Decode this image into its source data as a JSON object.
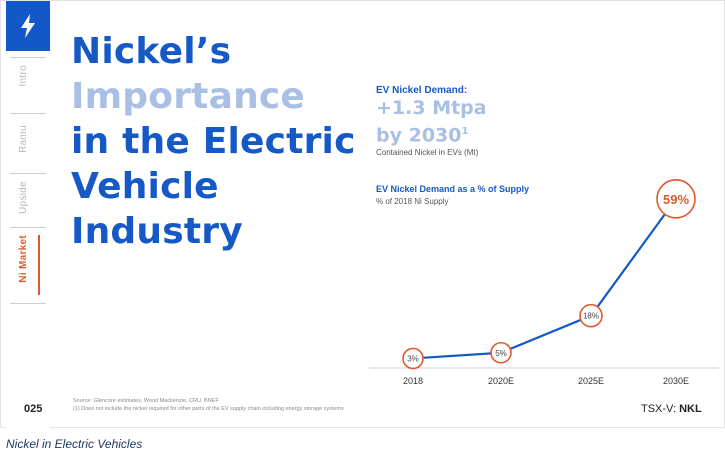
{
  "sidebar": {
    "logo_icon": "lightning-bolt-icon",
    "nav_items": [
      "Intro",
      "Ramu",
      "Upside",
      "Ni Market"
    ],
    "active_item": "Ni Market",
    "page_number": "025"
  },
  "title": {
    "line1": "Nickel’s",
    "line2": "Importance",
    "line3": "in the Electric",
    "line4": "Vehicle",
    "line5": "Industry"
  },
  "stat": {
    "heading": "EV Nickel Demand:",
    "value_line1": "+1.3 Mtpa",
    "value_line2": "by 2030",
    "footnote_mark": "1",
    "subtext": "Contained Nickel in EVs (Mt)"
  },
  "chart_heading": "EV Nickel Demand as a % of Supply",
  "chart_subheading": "% of 2018 Ni Supply",
  "chart_data": {
    "type": "line",
    "categories": [
      "2018",
      "2020E",
      "2025E",
      "2030E"
    ],
    "values": [
      3,
      5,
      18,
      59
    ],
    "data_labels": [
      "3%",
      "5%",
      "18%",
      "59%"
    ],
    "title": "EV Nickel Demand as a % of Supply",
    "ylabel": "% of 2018 Ni Supply",
    "ylim": [
      0,
      60
    ],
    "grid": false,
    "line_color": "#1559c6",
    "marker_color": "#e05a2e"
  },
  "footer": {
    "source_line1": "Source: Glencore estimates, Wood Mackenzie, CRU, BNEF",
    "source_line2": "(1)     Does not include the nickel required for other parts of the EV supply chain including energy storage systems",
    "ticker_prefix": "TSX-V: ",
    "ticker_symbol": "NKL"
  },
  "caption": "Nickel in Electric Vehicles"
}
